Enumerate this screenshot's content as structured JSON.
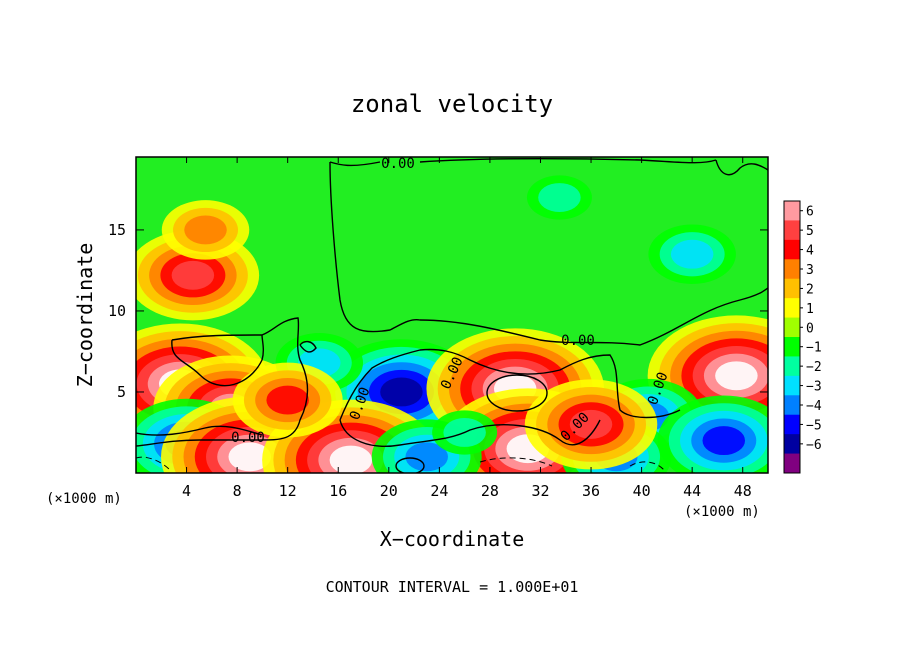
{
  "chart_data": {
    "type": "heatmap",
    "title": "zonal velocity",
    "xlabel": "X−coordinate",
    "ylabel": "Z−coordinate",
    "x_units": "(×1000 m)",
    "x_units_right": "(×1000 m)",
    "xlim": [
      0,
      50
    ],
    "ylim": [
      0,
      19.5
    ],
    "x_ticks": [
      4,
      8,
      12,
      16,
      20,
      24,
      28,
      32,
      36,
      40,
      44,
      48
    ],
    "y_ticks": [
      5,
      10,
      15
    ],
    "colorbar": {
      "ticks": [
        6,
        5,
        4,
        3,
        2,
        1,
        0,
        -1,
        -2,
        -3,
        -4,
        -5,
        -6
      ],
      "tick_labels": [
        "6",
        "5",
        "4",
        "3",
        "2",
        "1",
        "0",
        "−1",
        "−2",
        "−3",
        "−4",
        "−5",
        "−6"
      ],
      "colors": [
        "#ff9aa0",
        "#ff4040",
        "#ff0000",
        "#ff8000",
        "#ffc000",
        "#ffff00",
        "#a0ff00",
        "#00ff00",
        "#00ffa0",
        "#00e0ff",
        "#0080ff",
        "#0000ff",
        "#0000a0",
        "#800080"
      ]
    },
    "contour_label": "0.00",
    "footer": "CONTOUR INTERVAL = 1.000E+01",
    "features": [
      {
        "x": 4.5,
        "z": 12.2,
        "value": 5
      },
      {
        "x": 5.5,
        "z": 15.0,
        "value": 3
      },
      {
        "x": 3.5,
        "z": 5.5,
        "value": 7
      },
      {
        "x": 7.5,
        "z": 4.0,
        "value": 6
      },
      {
        "x": 4.0,
        "z": 1.8,
        "value": -5
      },
      {
        "x": 9.0,
        "z": 1.0,
        "value": 7
      },
      {
        "x": 33.5,
        "z": 17.0,
        "value": -2
      },
      {
        "x": 44.0,
        "z": 13.5,
        "value": -3
      },
      {
        "x": 21.0,
        "z": 5.0,
        "value": -6
      },
      {
        "x": 30.0,
        "z": 5.2,
        "value": 7
      },
      {
        "x": 14.5,
        "z": 6.8,
        "value": -3
      },
      {
        "x": 47.5,
        "z": 6.0,
        "value": 7
      },
      {
        "x": 40.5,
        "z": 3.5,
        "value": -4
      },
      {
        "x": 46.5,
        "z": 2.0,
        "value": -5
      },
      {
        "x": 31.0,
        "z": 1.5,
        "value": 7
      },
      {
        "x": 38.0,
        "z": 1.0,
        "value": -4
      },
      {
        "x": 17.0,
        "z": 0.8,
        "value": 7
      },
      {
        "x": 23.0,
        "z": 1.0,
        "value": -4
      },
      {
        "x": 36.0,
        "z": 3.0,
        "value": 5
      },
      {
        "x": 26.0,
        "z": 2.5,
        "value": -2
      },
      {
        "x": 12.0,
        "z": 4.5,
        "value": 4
      }
    ]
  }
}
